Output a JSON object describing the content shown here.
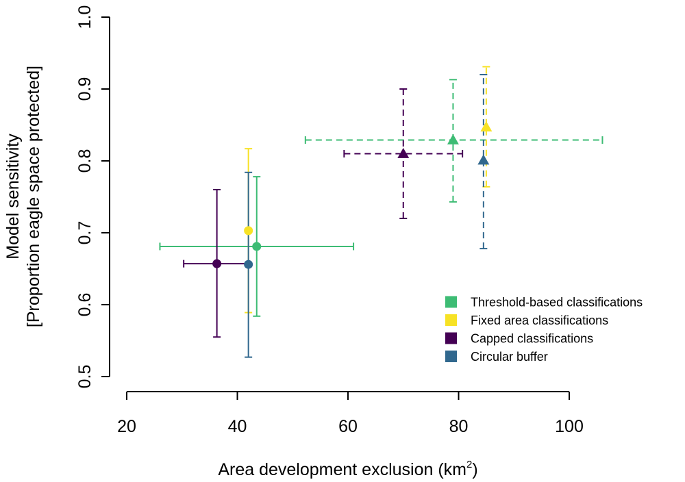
{
  "chart_data": {
    "type": "scatter",
    "xlabel": "Area development exclusion (km",
    "xlabel_sup": "2",
    "xlabel_close": ")",
    "ylabel": [
      "Model sensitivity",
      "[Proportion eagle space protected]"
    ],
    "xlim": [
      20,
      100
    ],
    "ylim": [
      0.5,
      1.0
    ],
    "x_ticks": [
      20,
      40,
      60,
      80,
      100
    ],
    "x_tick_labels": [
      "20",
      "40",
      "60",
      "80",
      "100"
    ],
    "y_ticks": [
      0.5,
      0.6,
      0.7,
      0.8,
      0.9,
      1.0
    ],
    "y_tick_labels": [
      "0.5",
      "0.6",
      "0.7",
      "0.8",
      "0.9",
      "1.0"
    ],
    "legend": {
      "position": "bottom-right",
      "entries": [
        {
          "label": "Threshold-based classifications",
          "color": "#3dbc74"
        },
        {
          "label": "Fixed area classifications",
          "color": "#f7e225"
        },
        {
          "label": "Capped classifications",
          "color": "#440154"
        },
        {
          "label": "Circular buffer",
          "color": "#31688e"
        }
      ]
    },
    "series": [
      {
        "name": "Threshold-based classifications",
        "marker": "circle",
        "line": "solid",
        "color": "#3dbc74",
        "x": 43.5,
        "y": 0.681,
        "x_err": [
          26,
          61
        ],
        "y_err": [
          0.584,
          0.778
        ]
      },
      {
        "name": "Fixed area classifications",
        "marker": "circle",
        "line": "solid",
        "color": "#f7e225",
        "x": 42,
        "y": 0.703,
        "x_err": null,
        "y_err": [
          0.589,
          0.817
        ]
      },
      {
        "name": "Capped classifications",
        "marker": "circle",
        "line": "solid",
        "color": "#440154",
        "x": 36.3,
        "y": 0.657,
        "x_err": [
          30.3,
          42
        ],
        "y_err": [
          0.555,
          0.76
        ]
      },
      {
        "name": "Circular buffer",
        "marker": "circle",
        "line": "solid",
        "color": "#31688e",
        "x": 42,
        "y": 0.656,
        "x_err": null,
        "y_err": [
          0.527,
          0.784
        ]
      },
      {
        "name": "Threshold-based classifications",
        "marker": "triangle",
        "line": "dashed",
        "color": "#3dbc74",
        "x": 79,
        "y": 0.829,
        "x_err": [
          52.3,
          106
        ],
        "y_err": [
          0.743,
          0.913
        ]
      },
      {
        "name": "Fixed area classifications",
        "marker": "triangle",
        "line": "dashed",
        "color": "#f7e225",
        "x": 85,
        "y": 0.847,
        "x_err": null,
        "y_err": [
          0.764,
          0.931
        ]
      },
      {
        "name": "Capped classifications",
        "marker": "triangle",
        "line": "dashed",
        "color": "#440154",
        "x": 70,
        "y": 0.81,
        "x_err": [
          59.3,
          80.7
        ],
        "y_err": [
          0.72,
          0.9
        ]
      },
      {
        "name": "Circular buffer",
        "marker": "triangle",
        "line": "dashed",
        "color": "#31688e",
        "x": 84.5,
        "y": 0.801,
        "x_err": null,
        "y_err": [
          0.678,
          0.92
        ]
      }
    ]
  }
}
